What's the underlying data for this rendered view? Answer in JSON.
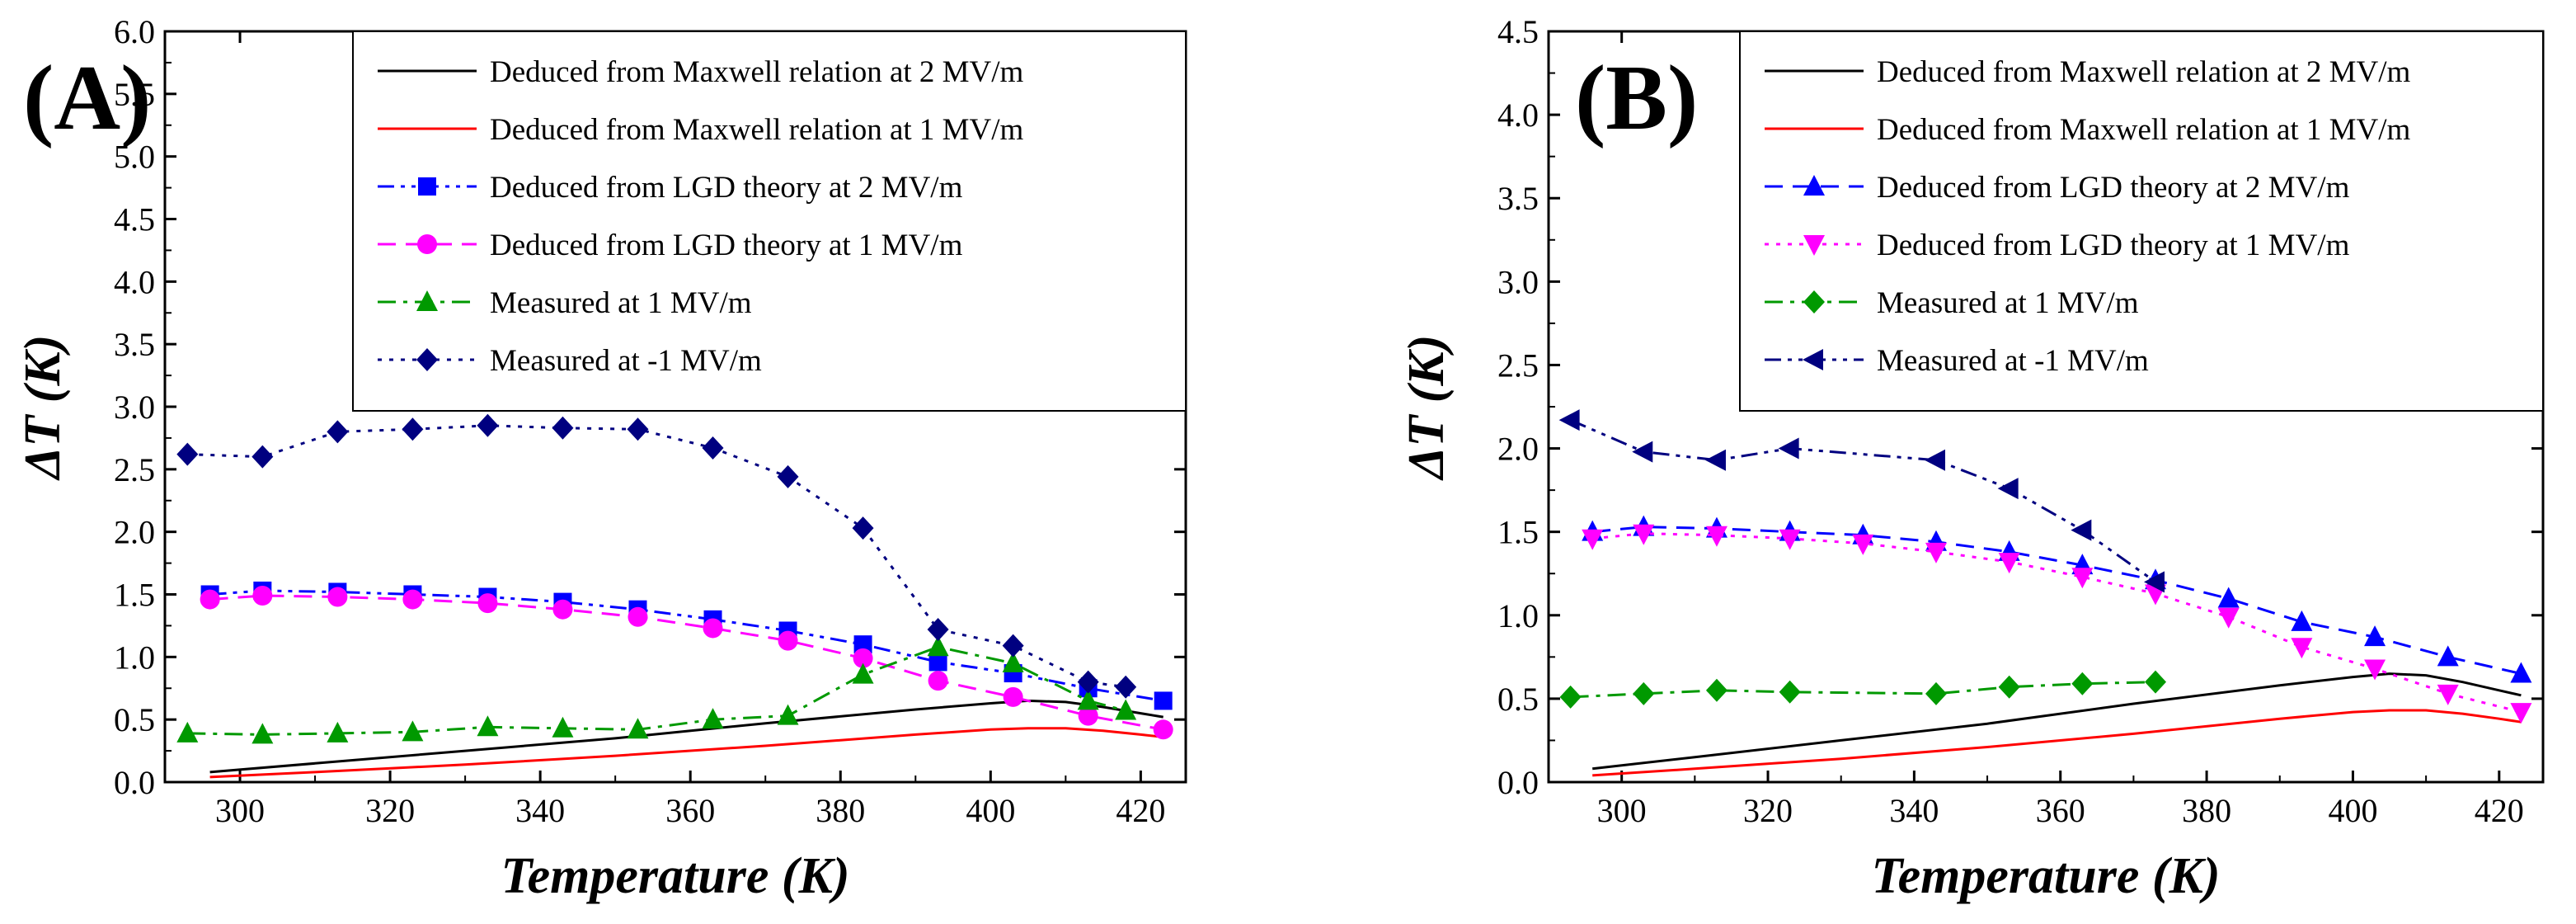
{
  "chart_data": [
    {
      "panel_label": "(A)",
      "type": "line",
      "xlabel": "Temperature (K)",
      "ylabel": "ΔT (K)",
      "xlim": [
        290,
        426
      ],
      "ylim": [
        0,
        6
      ],
      "xticks": [
        "300",
        "320",
        "340",
        "360",
        "380",
        "400",
        "420"
      ],
      "yticks": [
        "0.0",
        "0.5",
        "1.0",
        "1.5",
        "2.0",
        "2.5",
        "3.0",
        "3.5",
        "4.0",
        "4.5",
        "5.0",
        "5.5",
        "6.0"
      ],
      "legend_position": "top-right",
      "series": [
        {
          "name": "Deduced from Maxwell relation at 2 MV/m",
          "color": "#000000",
          "dash": "solid",
          "marker": "none",
          "x": [
            296,
            310,
            330,
            350,
            370,
            390,
            400,
            405,
            410,
            415,
            420,
            423
          ],
          "y": [
            0.08,
            0.15,
            0.25,
            0.35,
            0.47,
            0.58,
            0.63,
            0.65,
            0.64,
            0.6,
            0.55,
            0.52
          ]
        },
        {
          "name": "Deduced from Maxwell relation at 1 MV/m",
          "color": "#ff0000",
          "dash": "solid",
          "marker": "none",
          "x": [
            296,
            310,
            330,
            350,
            370,
            390,
            400,
            405,
            410,
            415,
            420,
            423
          ],
          "y": [
            0.04,
            0.08,
            0.14,
            0.21,
            0.29,
            0.38,
            0.42,
            0.43,
            0.43,
            0.41,
            0.38,
            0.36
          ]
        },
        {
          "name": "Deduced from LGD theory at 2 MV/m",
          "color": "#0000ff",
          "dash": "dash-dot-dot",
          "marker": "square",
          "x": [
            296,
            303,
            313,
            323,
            333,
            343,
            353,
            363,
            373,
            383,
            393,
            403,
            413,
            423
          ],
          "y": [
            1.5,
            1.53,
            1.52,
            1.5,
            1.48,
            1.44,
            1.38,
            1.3,
            1.21,
            1.1,
            0.96,
            0.87,
            0.75,
            0.65
          ]
        },
        {
          "name": "Deduced from LGD theory at 1 MV/m",
          "color": "#ff00ff",
          "dash": "dash",
          "marker": "circle",
          "x": [
            296,
            303,
            313,
            323,
            333,
            343,
            353,
            363,
            373,
            383,
            393,
            403,
            413,
            423
          ],
          "y": [
            1.46,
            1.49,
            1.48,
            1.46,
            1.43,
            1.38,
            1.32,
            1.23,
            1.13,
            0.99,
            0.81,
            0.68,
            0.53,
            0.42
          ]
        },
        {
          "name": "Measured at 1 MV/m",
          "color": "#009900",
          "dash": "dash-dot",
          "marker": "triangle-up",
          "x": [
            293,
            303,
            313,
            323,
            333,
            343,
            353,
            363,
            373,
            383,
            393,
            403,
            413,
            418
          ],
          "y": [
            0.39,
            0.38,
            0.39,
            0.4,
            0.44,
            0.43,
            0.42,
            0.5,
            0.53,
            0.86,
            1.08,
            0.95,
            0.65,
            0.57
          ]
        },
        {
          "name": "Measured at -1 MV/m",
          "color": "#000080",
          "dash": "dot",
          "marker": "diamond",
          "x": [
            293,
            303,
            313,
            323,
            333,
            343,
            353,
            363,
            373,
            383,
            393,
            403,
            413,
            418
          ],
          "y": [
            2.62,
            2.6,
            2.8,
            2.82,
            2.85,
            2.83,
            2.82,
            2.67,
            2.44,
            2.03,
            1.22,
            1.09,
            0.8,
            0.76
          ]
        }
      ]
    },
    {
      "panel_label": "(B)",
      "type": "line",
      "xlabel": "Temperature (K)",
      "ylabel": "ΔT (K)",
      "xlim": [
        290,
        426
      ],
      "ylim": [
        0,
        4.5
      ],
      "xticks": [
        "300",
        "320",
        "340",
        "360",
        "380",
        "400",
        "420"
      ],
      "yticks": [
        "0.0",
        "0.5",
        "1.0",
        "1.5",
        "2.0",
        "2.5",
        "3.0",
        "3.5",
        "4.0",
        "4.5"
      ],
      "legend_position": "top-right",
      "series": [
        {
          "name": "Deduced from Maxwell relation at 2 MV/m",
          "color": "#000000",
          "dash": "solid",
          "marker": "none",
          "x": [
            296,
            310,
            330,
            350,
            370,
            390,
            400,
            405,
            410,
            415,
            420,
            423
          ],
          "y": [
            0.08,
            0.15,
            0.25,
            0.35,
            0.47,
            0.58,
            0.63,
            0.65,
            0.64,
            0.6,
            0.55,
            0.52
          ]
        },
        {
          "name": "Deduced from Maxwell relation at 1 MV/m",
          "color": "#ff0000",
          "dash": "solid",
          "marker": "none",
          "x": [
            296,
            310,
            330,
            350,
            370,
            390,
            400,
            405,
            410,
            415,
            420,
            423
          ],
          "y": [
            0.04,
            0.08,
            0.14,
            0.21,
            0.29,
            0.38,
            0.42,
            0.43,
            0.43,
            0.41,
            0.38,
            0.36
          ]
        },
        {
          "name": "Deduced from LGD theory at 2 MV/m",
          "color": "#0000ff",
          "dash": "dash",
          "marker": "triangle-up",
          "x": [
            296,
            303,
            313,
            323,
            333,
            343,
            353,
            363,
            373,
            383,
            393,
            403,
            413,
            423
          ],
          "y": [
            1.5,
            1.53,
            1.52,
            1.5,
            1.48,
            1.44,
            1.38,
            1.3,
            1.21,
            1.1,
            0.96,
            0.87,
            0.75,
            0.65
          ]
        },
        {
          "name": "Deduced from LGD theory at 1 MV/m",
          "color": "#ff00ff",
          "dash": "dot",
          "marker": "triangle-down",
          "x": [
            296,
            303,
            313,
            323,
            333,
            343,
            353,
            363,
            373,
            383,
            393,
            403,
            413,
            423
          ],
          "y": [
            1.46,
            1.49,
            1.48,
            1.46,
            1.43,
            1.38,
            1.32,
            1.23,
            1.13,
            0.99,
            0.81,
            0.68,
            0.53,
            0.42
          ]
        },
        {
          "name": "Measured at 1 MV/m",
          "color": "#009900",
          "dash": "dash-dot",
          "marker": "diamond",
          "x": [
            293,
            303,
            313,
            323,
            343,
            353,
            363,
            373
          ],
          "y": [
            0.51,
            0.53,
            0.55,
            0.54,
            0.53,
            0.57,
            0.59,
            0.6
          ]
        },
        {
          "name": "Measured at -1 MV/m",
          "color": "#000080",
          "dash": "dash-dot-dot",
          "marker": "triangle-left",
          "x": [
            293,
            303,
            313,
            323,
            343,
            353,
            363,
            373
          ],
          "y": [
            2.17,
            1.98,
            1.93,
            2.0,
            1.93,
            1.76,
            1.51,
            1.2
          ]
        }
      ]
    }
  ]
}
